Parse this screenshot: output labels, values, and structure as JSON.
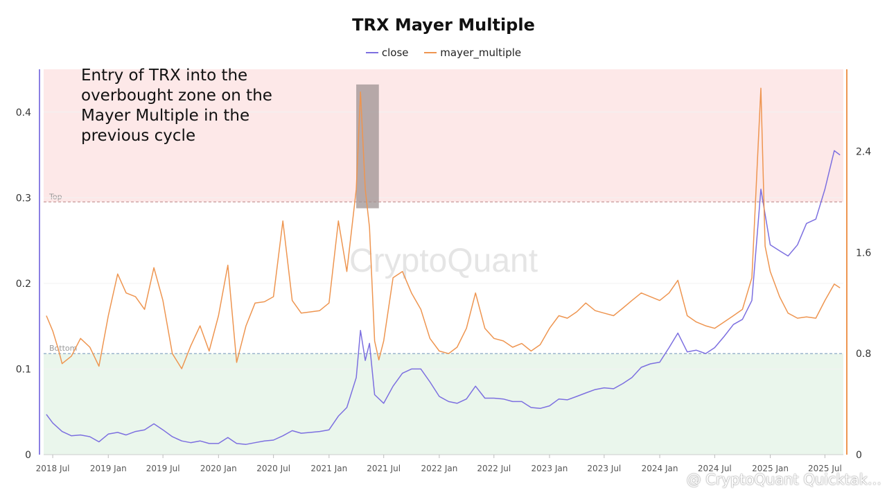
{
  "chart_data": {
    "type": "line",
    "title": "TRX Mayer Multiple",
    "legend_position": "top-center",
    "grid": true,
    "watermark": "CryptoQuant",
    "x_tick_labels": [
      "2018 Jul",
      "2019 Jan",
      "2019 Jul",
      "2020 Jan",
      "2020 Jul",
      "2021 Jan",
      "2021 Jul",
      "2022 Jan",
      "2022 Jul",
      "2023 Jan",
      "2023 Jul",
      "2024 Jan",
      "2024 Jul",
      "2025 Jan",
      "2025 Jul"
    ],
    "xlim": [
      "2018-06-01",
      "2025-08-31"
    ],
    "y_left": {
      "series": "close",
      "ylim": [
        0,
        0.45
      ],
      "ticks": [
        0,
        0.1,
        0.2,
        0.3,
        0.4
      ]
    },
    "y_right": {
      "series": "mayer_multiple",
      "ylim": [
        0,
        3.05
      ],
      "ticks": [
        0,
        0.8,
        1.6,
        2.4
      ]
    },
    "zones": [
      {
        "name": "Top",
        "axis": "right",
        "from": 2.0,
        "to": 3.05,
        "color": "#fde8e8",
        "line_color": "#c99a9a"
      },
      {
        "name": "Bottom",
        "axis": "right",
        "from": 0,
        "to": 0.8,
        "color": "#eaf6ec",
        "line_color": "#7f9fc0"
      }
    ],
    "highlight": {
      "from": "2021-04-01",
      "to": "2021-06-15",
      "axis": "right",
      "y_from": 1.95,
      "y_to": 2.93,
      "color": "#9e9393"
    },
    "series": [
      {
        "name": "close",
        "axis": "left",
        "color": "#7c6fe0",
        "points": [
          [
            "2018-06-10",
            0.047
          ],
          [
            "2018-07-01",
            0.037
          ],
          [
            "2018-08-01",
            0.027
          ],
          [
            "2018-09-01",
            0.022
          ],
          [
            "2018-10-01",
            0.023
          ],
          [
            "2018-11-01",
            0.021
          ],
          [
            "2018-12-01",
            0.015
          ],
          [
            "2019-01-01",
            0.024
          ],
          [
            "2019-02-01",
            0.026
          ],
          [
            "2019-03-01",
            0.023
          ],
          [
            "2019-04-01",
            0.027
          ],
          [
            "2019-05-01",
            0.029
          ],
          [
            "2019-06-01",
            0.036
          ],
          [
            "2019-07-01",
            0.029
          ],
          [
            "2019-08-01",
            0.021
          ],
          [
            "2019-09-01",
            0.016
          ],
          [
            "2019-10-01",
            0.014
          ],
          [
            "2019-11-01",
            0.016
          ],
          [
            "2019-12-01",
            0.013
          ],
          [
            "2020-01-01",
            0.013
          ],
          [
            "2020-02-01",
            0.02
          ],
          [
            "2020-03-01",
            0.013
          ],
          [
            "2020-04-01",
            0.012
          ],
          [
            "2020-05-01",
            0.014
          ],
          [
            "2020-06-01",
            0.016
          ],
          [
            "2020-07-01",
            0.017
          ],
          [
            "2020-08-01",
            0.022
          ],
          [
            "2020-09-01",
            0.028
          ],
          [
            "2020-10-01",
            0.025
          ],
          [
            "2020-11-01",
            0.026
          ],
          [
            "2020-12-01",
            0.027
          ],
          [
            "2021-01-01",
            0.029
          ],
          [
            "2021-02-01",
            0.045
          ],
          [
            "2021-03-01",
            0.055
          ],
          [
            "2021-04-01",
            0.09
          ],
          [
            "2021-04-15",
            0.145
          ],
          [
            "2021-05-01",
            0.11
          ],
          [
            "2021-05-15",
            0.13
          ],
          [
            "2021-06-01",
            0.07
          ],
          [
            "2021-07-01",
            0.06
          ],
          [
            "2021-08-01",
            0.08
          ],
          [
            "2021-09-01",
            0.095
          ],
          [
            "2021-10-01",
            0.1
          ],
          [
            "2021-11-01",
            0.1
          ],
          [
            "2021-12-01",
            0.085
          ],
          [
            "2022-01-01",
            0.068
          ],
          [
            "2022-02-01",
            0.062
          ],
          [
            "2022-03-01",
            0.06
          ],
          [
            "2022-04-01",
            0.065
          ],
          [
            "2022-05-01",
            0.08
          ],
          [
            "2022-06-01",
            0.066
          ],
          [
            "2022-07-01",
            0.066
          ],
          [
            "2022-08-01",
            0.065
          ],
          [
            "2022-09-01",
            0.062
          ],
          [
            "2022-10-01",
            0.062
          ],
          [
            "2022-11-01",
            0.055
          ],
          [
            "2022-12-01",
            0.054
          ],
          [
            "2023-01-01",
            0.057
          ],
          [
            "2023-02-01",
            0.065
          ],
          [
            "2023-03-01",
            0.064
          ],
          [
            "2023-04-01",
            0.068
          ],
          [
            "2023-05-01",
            0.072
          ],
          [
            "2023-06-01",
            0.076
          ],
          [
            "2023-07-01",
            0.078
          ],
          [
            "2023-08-01",
            0.077
          ],
          [
            "2023-09-01",
            0.083
          ],
          [
            "2023-10-01",
            0.09
          ],
          [
            "2023-11-01",
            0.102
          ],
          [
            "2023-12-01",
            0.106
          ],
          [
            "2024-01-01",
            0.108
          ],
          [
            "2024-02-01",
            0.125
          ],
          [
            "2024-03-01",
            0.142
          ],
          [
            "2024-04-01",
            0.12
          ],
          [
            "2024-05-01",
            0.122
          ],
          [
            "2024-06-01",
            0.118
          ],
          [
            "2024-07-01",
            0.125
          ],
          [
            "2024-08-01",
            0.138
          ],
          [
            "2024-09-01",
            0.152
          ],
          [
            "2024-10-01",
            0.158
          ],
          [
            "2024-11-01",
            0.18
          ],
          [
            "2024-12-01",
            0.31
          ],
          [
            "2025-01-01",
            0.245
          ],
          [
            "2025-02-01",
            0.238
          ],
          [
            "2025-03-01",
            0.232
          ],
          [
            "2025-04-01",
            0.245
          ],
          [
            "2025-05-01",
            0.27
          ],
          [
            "2025-06-01",
            0.275
          ],
          [
            "2025-07-01",
            0.31
          ],
          [
            "2025-08-01",
            0.355
          ],
          [
            "2025-08-20",
            0.35
          ]
        ]
      },
      {
        "name": "mayer_multiple",
        "axis": "right",
        "color": "#ee9550",
        "points": [
          [
            "2018-06-10",
            1.1
          ],
          [
            "2018-07-01",
            0.98
          ],
          [
            "2018-07-20",
            0.83
          ],
          [
            "2018-08-01",
            0.72
          ],
          [
            "2018-09-01",
            0.78
          ],
          [
            "2018-10-01",
            0.92
          ],
          [
            "2018-11-01",
            0.85
          ],
          [
            "2018-12-01",
            0.7
          ],
          [
            "2019-01-01",
            1.1
          ],
          [
            "2019-02-01",
            1.43
          ],
          [
            "2019-03-01",
            1.28
          ],
          [
            "2019-04-01",
            1.25
          ],
          [
            "2019-05-01",
            1.15
          ],
          [
            "2019-06-01",
            1.48
          ],
          [
            "2019-07-01",
            1.22
          ],
          [
            "2019-08-01",
            0.8
          ],
          [
            "2019-09-01",
            0.68
          ],
          [
            "2019-10-01",
            0.86
          ],
          [
            "2019-11-01",
            1.02
          ],
          [
            "2019-12-01",
            0.82
          ],
          [
            "2020-01-01",
            1.1
          ],
          [
            "2020-02-01",
            1.5
          ],
          [
            "2020-03-01",
            0.73
          ],
          [
            "2020-04-01",
            1.02
          ],
          [
            "2020-05-01",
            1.2
          ],
          [
            "2020-06-01",
            1.21
          ],
          [
            "2020-07-01",
            1.25
          ],
          [
            "2020-08-01",
            1.85
          ],
          [
            "2020-09-01",
            1.22
          ],
          [
            "2020-10-01",
            1.12
          ],
          [
            "2020-11-01",
            1.13
          ],
          [
            "2020-12-01",
            1.14
          ],
          [
            "2021-01-01",
            1.2
          ],
          [
            "2021-02-01",
            1.85
          ],
          [
            "2021-03-01",
            1.45
          ],
          [
            "2021-04-01",
            2.1
          ],
          [
            "2021-04-15",
            2.87
          ],
          [
            "2021-05-01",
            2.1
          ],
          [
            "2021-05-15",
            1.8
          ],
          [
            "2021-06-01",
            0.9
          ],
          [
            "2021-06-15",
            0.75
          ],
          [
            "2021-07-01",
            0.9
          ],
          [
            "2021-08-01",
            1.4
          ],
          [
            "2021-09-01",
            1.45
          ],
          [
            "2021-10-01",
            1.28
          ],
          [
            "2021-11-01",
            1.15
          ],
          [
            "2021-12-01",
            0.92
          ],
          [
            "2022-01-01",
            0.82
          ],
          [
            "2022-02-01",
            0.8
          ],
          [
            "2022-03-01",
            0.85
          ],
          [
            "2022-04-01",
            1.0
          ],
          [
            "2022-05-01",
            1.28
          ],
          [
            "2022-06-01",
            1.0
          ],
          [
            "2022-07-01",
            0.92
          ],
          [
            "2022-08-01",
            0.9
          ],
          [
            "2022-09-01",
            0.85
          ],
          [
            "2022-10-01",
            0.88
          ],
          [
            "2022-11-01",
            0.82
          ],
          [
            "2022-12-01",
            0.87
          ],
          [
            "2023-01-01",
            1.0
          ],
          [
            "2023-02-01",
            1.1
          ],
          [
            "2023-03-01",
            1.08
          ],
          [
            "2023-04-01",
            1.13
          ],
          [
            "2023-05-01",
            1.2
          ],
          [
            "2023-06-01",
            1.14
          ],
          [
            "2023-07-01",
            1.12
          ],
          [
            "2023-08-01",
            1.1
          ],
          [
            "2023-09-01",
            1.16
          ],
          [
            "2023-10-01",
            1.22
          ],
          [
            "2023-11-01",
            1.28
          ],
          [
            "2023-12-01",
            1.25
          ],
          [
            "2024-01-01",
            1.22
          ],
          [
            "2024-02-01",
            1.28
          ],
          [
            "2024-03-01",
            1.38
          ],
          [
            "2024-04-01",
            1.1
          ],
          [
            "2024-05-01",
            1.05
          ],
          [
            "2024-06-01",
            1.02
          ],
          [
            "2024-07-01",
            1.0
          ],
          [
            "2024-08-01",
            1.05
          ],
          [
            "2024-09-01",
            1.1
          ],
          [
            "2024-10-01",
            1.15
          ],
          [
            "2024-11-01",
            1.4
          ],
          [
            "2024-12-01",
            2.9
          ],
          [
            "2024-12-15",
            1.65
          ],
          [
            "2025-01-01",
            1.45
          ],
          [
            "2025-02-01",
            1.25
          ],
          [
            "2025-03-01",
            1.12
          ],
          [
            "2025-04-01",
            1.08
          ],
          [
            "2025-05-01",
            1.09
          ],
          [
            "2025-06-01",
            1.08
          ],
          [
            "2025-07-01",
            1.22
          ],
          [
            "2025-08-01",
            1.35
          ],
          [
            "2025-08-20",
            1.32
          ]
        ]
      }
    ]
  },
  "annotation": "Entry of TRX into the overbought zone on the Mayer Multiple in the previous cycle",
  "footer": "@ CryptoQuant Quicktak..."
}
